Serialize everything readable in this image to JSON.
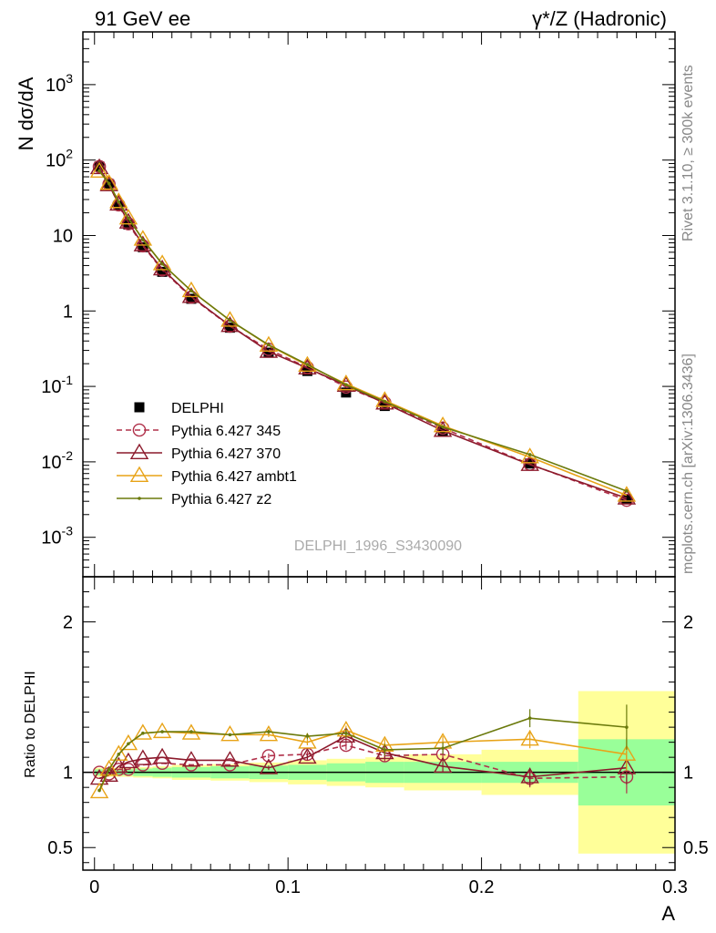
{
  "header": {
    "left": "91 GeV ee",
    "right": "γ*/Z (Hadronic)"
  },
  "side": {
    "rivet": "Rivet 3.1.10, ≥ 300k events",
    "mcplots": "mcplots.cern.ch [arXiv:1306.3436]"
  },
  "chart_data": [
    {
      "type": "line",
      "panel": "main",
      "ylabel": "N dσ/dA",
      "yscale": "log",
      "ylim": [
        0.0003,
        5000
      ],
      "xlim": [
        -0.006,
        0.3
      ],
      "watermark": "DELPHI_1996_S3430090",
      "yticks": [
        {
          "v": 0.001,
          "base": "10",
          "exp": "-3"
        },
        {
          "v": 0.01,
          "base": "10",
          "exp": "-2"
        },
        {
          "v": 0.1,
          "base": "10",
          "exp": "-1"
        },
        {
          "v": 1,
          "base": "1",
          "exp": ""
        },
        {
          "v": 10,
          "base": "10",
          "exp": ""
        },
        {
          "v": 100,
          "base": "10",
          "exp": "2"
        },
        {
          "v": 1000,
          "base": "10",
          "exp": "3"
        }
      ],
      "x": [
        0.0025,
        0.0075,
        0.0125,
        0.0175,
        0.025,
        0.035,
        0.05,
        0.07,
        0.09,
        0.11,
        0.13,
        0.15,
        0.18,
        0.225,
        0.275
      ],
      "data": {
        "name": "DELPHI",
        "values": [
          82,
          48,
          25,
          14,
          7.0,
          3.3,
          1.45,
          0.6,
          0.28,
          0.16,
          0.083,
          0.055,
          0.025,
          0.0095,
          0.0032
        ]
      },
      "series": [
        {
          "name": "Pythia 6.427 345",
          "color": "#b0304a",
          "dash": true,
          "marker": "circle",
          "values": [
            82,
            48,
            25.5,
            14.3,
            7.3,
            3.5,
            1.52,
            0.63,
            0.31,
            0.178,
            0.098,
            0.061,
            0.028,
            0.0093,
            0.0031
          ]
        },
        {
          "name": "Pythia 6.427 370",
          "color": "#8c1a2c",
          "dash": false,
          "marker": "triangle",
          "values": [
            79,
            47,
            26,
            15,
            7.5,
            3.6,
            1.55,
            0.64,
            0.29,
            0.175,
            0.103,
            0.06,
            0.026,
            0.0092,
            0.0033
          ]
        },
        {
          "name": "Pythia 6.427 ambt1",
          "color": "#e8a317",
          "dash": false,
          "marker": "triangle",
          "values": [
            71,
            49,
            28,
            17,
            8.9,
            4.2,
            1.85,
            0.75,
            0.35,
            0.19,
            0.108,
            0.065,
            0.03,
            0.0116,
            0.0036
          ]
        },
        {
          "name": "Pythia 6.427 z2",
          "color": "#6b7a0c",
          "dash": false,
          "marker": "dot",
          "values": [
            72,
            49,
            28,
            17,
            8.8,
            4.2,
            1.85,
            0.75,
            0.355,
            0.195,
            0.105,
            0.063,
            0.029,
            0.0125,
            0.0041
          ]
        }
      ]
    },
    {
      "type": "line",
      "panel": "ratio",
      "ylabel": "Ratio to DELPHI",
      "ylim": [
        0.35,
        2.3
      ],
      "yticks": [
        0.5,
        1,
        2
      ],
      "ytick_labels": [
        "0.5",
        "1",
        "2"
      ],
      "xlabel": "A",
      "xticks": [
        0,
        0.1,
        0.2,
        0.3
      ],
      "xtick_labels": [
        "0",
        "0.1",
        "0.2",
        "0.3"
      ],
      "bins": [
        [
          0,
          0.005
        ],
        [
          0.005,
          0.01
        ],
        [
          0.01,
          0.015
        ],
        [
          0.015,
          0.02
        ],
        [
          0.02,
          0.03
        ],
        [
          0.03,
          0.04
        ],
        [
          0.04,
          0.06
        ],
        [
          0.06,
          0.08
        ],
        [
          0.08,
          0.1
        ],
        [
          0.1,
          0.12
        ],
        [
          0.12,
          0.14
        ],
        [
          0.14,
          0.16
        ],
        [
          0.16,
          0.2
        ],
        [
          0.2,
          0.25
        ],
        [
          0.25,
          0.3
        ]
      ],
      "band_green": [
        0.02,
        0.02,
        0.02,
        0.02,
        0.025,
        0.03,
        0.035,
        0.04,
        0.045,
        0.05,
        0.06,
        0.07,
        0.07,
        0.07,
        0.22
      ],
      "band_yellow": [
        0.03,
        0.03,
        0.03,
        0.03,
        0.035,
        0.04,
        0.05,
        0.055,
        0.065,
        0.08,
        0.09,
        0.1,
        0.12,
        0.15,
        0.54
      ],
      "x": [
        0.0025,
        0.0075,
        0.0125,
        0.0175,
        0.025,
        0.035,
        0.05,
        0.07,
        0.09,
        0.11,
        0.13,
        0.15,
        0.18,
        0.225,
        0.275
      ],
      "series": [
        {
          "name": "Pythia 6.427 345",
          "color": "#b0304a",
          "dash": true,
          "marker": "circle",
          "values": [
            1.0,
            0.99,
            1.02,
            1.02,
            1.05,
            1.06,
            1.05,
            1.05,
            1.11,
            1.12,
            1.18,
            1.11,
            1.12,
            0.96,
            0.97
          ],
          "err": [
            0.005,
            0.005,
            0.005,
            0.005,
            0.005,
            0.005,
            0.008,
            0.01,
            0.015,
            0.02,
            0.03,
            0.04,
            0.04,
            0.06,
            0.11
          ]
        },
        {
          "name": "Pythia 6.427 370",
          "color": "#8c1a2c",
          "dash": false,
          "marker": "triangle",
          "values": [
            0.96,
            0.98,
            1.04,
            1.07,
            1.09,
            1.1,
            1.08,
            1.08,
            1.03,
            1.1,
            1.24,
            1.13,
            1.04,
            0.97,
            1.03
          ],
          "err": [
            0.005,
            0.005,
            0.005,
            0.005,
            0.005,
            0.005,
            0.008,
            0.01,
            0.015,
            0.02,
            0.03,
            0.04,
            0.04,
            0.06,
            0.11
          ]
        },
        {
          "name": "Pythia 6.427 ambt1",
          "color": "#e8a317",
          "dash": false,
          "marker": "triangle",
          "values": [
            0.87,
            1.02,
            1.12,
            1.19,
            1.26,
            1.27,
            1.26,
            1.25,
            1.25,
            1.2,
            1.28,
            1.18,
            1.2,
            1.22,
            1.12
          ],
          "err": [
            0.005,
            0.005,
            0.005,
            0.005,
            0.005,
            0.005,
            0.008,
            0.01,
            0.015,
            0.02,
            0.03,
            0.04,
            0.04,
            0.06,
            0.11
          ]
        },
        {
          "name": "Pythia 6.427 z2",
          "color": "#6b7a0c",
          "dash": false,
          "marker": "dot",
          "values": [
            0.88,
            1.02,
            1.12,
            1.19,
            1.26,
            1.27,
            1.27,
            1.25,
            1.27,
            1.24,
            1.26,
            1.15,
            1.16,
            1.36,
            1.3
          ],
          "err": [
            0.005,
            0.005,
            0.005,
            0.005,
            0.005,
            0.005,
            0.008,
            0.01,
            0.015,
            0.02,
            0.03,
            0.04,
            0.04,
            0.06,
            0.15
          ]
        }
      ]
    }
  ]
}
